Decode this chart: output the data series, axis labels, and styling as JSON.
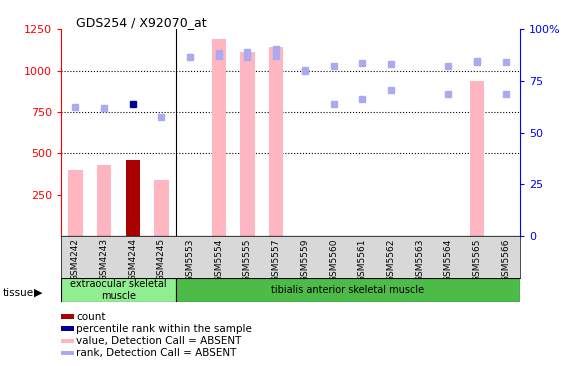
{
  "title": "GDS254 / X92070_at",
  "samples": [
    "GSM4242",
    "GSM4243",
    "GSM4244",
    "GSM4245",
    "GSM5553",
    "GSM5554",
    "GSM5555",
    "GSM5557",
    "GSM5559",
    "GSM5560",
    "GSM5561",
    "GSM5562",
    "GSM5563",
    "GSM5564",
    "GSM5565",
    "GSM5566"
  ],
  "values_absent": [
    400,
    430,
    460,
    340,
    null,
    1190,
    1110,
    1140,
    null,
    null,
    null,
    null,
    null,
    null,
    940,
    null
  ],
  "rank_absent_left": [
    null,
    null,
    null,
    null,
    null,
    1090,
    1110,
    1130,
    1000,
    800,
    830,
    880,
    null,
    860,
    1050,
    860
  ],
  "percentile_light_blue": [
    780,
    775,
    null,
    720,
    1080,
    1105,
    1080,
    1090,
    1005,
    1030,
    1045,
    1040,
    null,
    1030,
    1060,
    1050
  ],
  "percentile_dark_blue": [
    null,
    null,
    800,
    null,
    null,
    null,
    null,
    null,
    null,
    null,
    null,
    null,
    null,
    null,
    null,
    null
  ],
  "is_count_dark": [
    false,
    false,
    true,
    false,
    false,
    false,
    false,
    false,
    false,
    false,
    false,
    false,
    false,
    false,
    false,
    false
  ],
  "tissue_groups": [
    {
      "label": "extraocular skeletal\nmuscle",
      "start": 0,
      "end": 4,
      "color": "#90EE90"
    },
    {
      "label": "tibialis anterior skeletal muscle",
      "start": 4,
      "end": 16,
      "color": "#4CBB47"
    }
  ],
  "ylim_left": [
    0,
    1250
  ],
  "yticks_left": [
    250,
    500,
    750,
    1000,
    1250
  ],
  "yticks_right": [
    0,
    25,
    50,
    75,
    100
  ],
  "bar_color_light": "#FFB6C1",
  "bar_color_dark": "#AA0000",
  "rank_color_light": "#AAAAEE",
  "rank_color_dark": "#000099",
  "bg_color": "#d8d8d8"
}
